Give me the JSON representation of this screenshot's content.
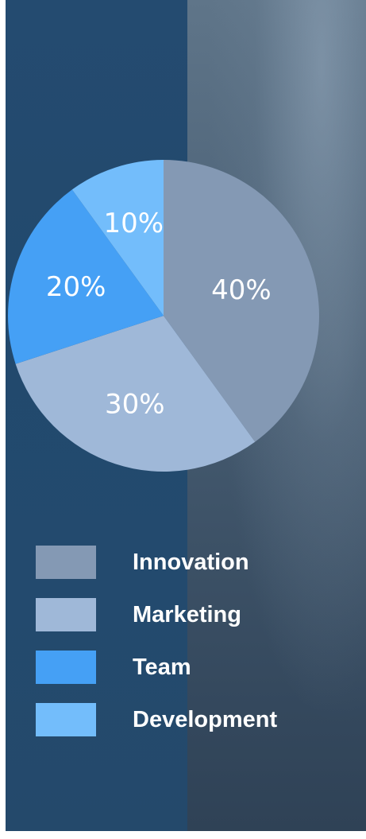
{
  "chart_data": {
    "type": "pie",
    "categories": [
      "Innovation",
      "Marketing",
      "Team",
      "Development"
    ],
    "values": [
      40,
      30,
      20,
      10
    ],
    "labels": [
      "40%",
      "30%",
      "20%",
      "10%"
    ],
    "colors": [
      "#8499b4",
      "#9fb8d8",
      "#45a0f5",
      "#73bdfb"
    ],
    "title": "",
    "legend": "bottom"
  },
  "legend": {
    "items": [
      {
        "label": "Innovation",
        "color": "#8499b4"
      },
      {
        "label": "Marketing",
        "color": "#9fb8d8"
      },
      {
        "label": "Team",
        "color": "#45a0f5"
      },
      {
        "label": "Development",
        "color": "#73bdfb"
      }
    ]
  }
}
